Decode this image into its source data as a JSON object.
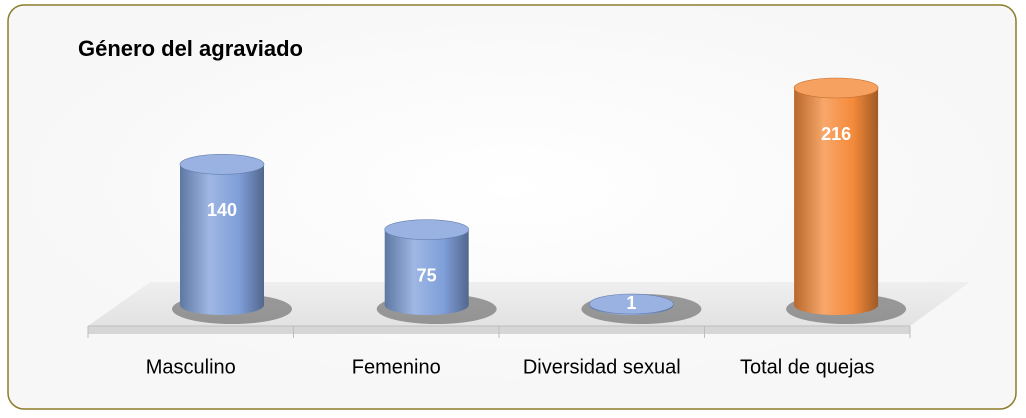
{
  "chart_data": {
    "type": "bar3d",
    "title": "Género del agraviado",
    "categories": [
      "Masculino",
      "Femenino",
      "Diversidad sexual",
      "Total de quejas"
    ],
    "values": [
      140,
      75,
      1,
      216
    ],
    "colors": [
      "#7f9fd9",
      "#7f9fd9",
      "#7f9fd9",
      "#f58a3a"
    ]
  }
}
